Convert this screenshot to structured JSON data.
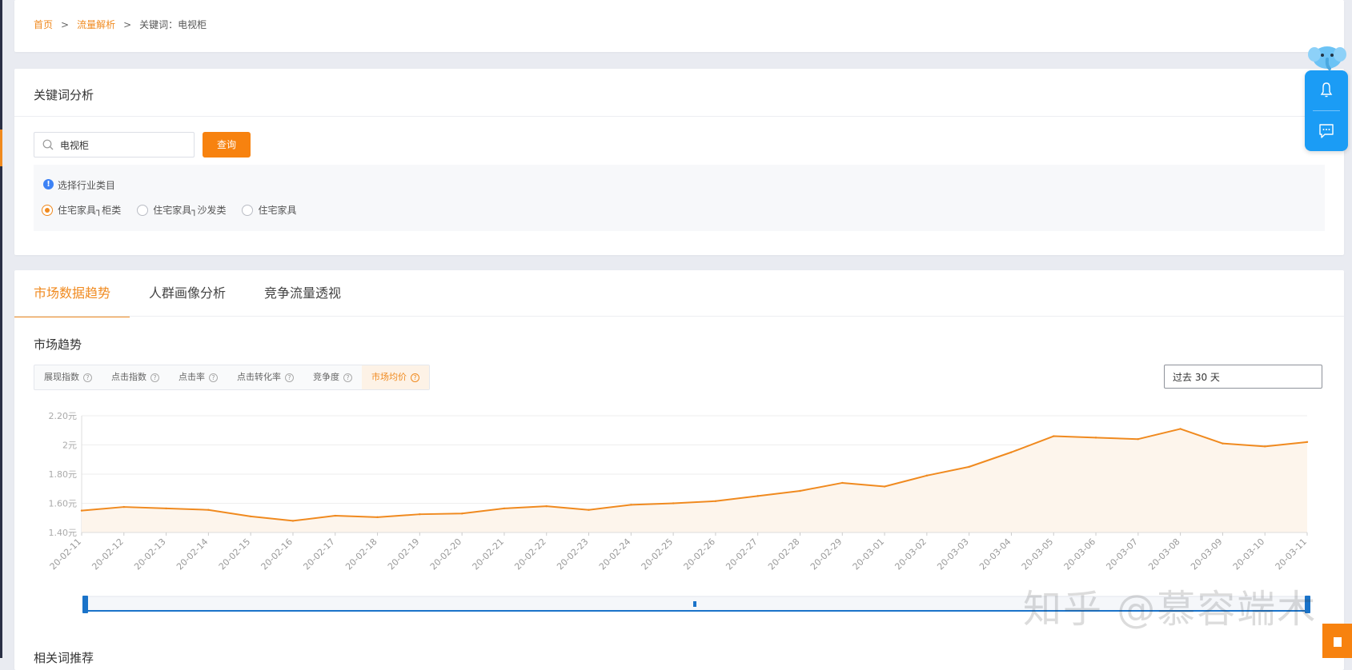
{
  "breadcrumb": {
    "home": "首页",
    "sep1": ">",
    "section": "流量解析",
    "sep2": ">",
    "current": "关键词：电视柜"
  },
  "keyword_panel": {
    "title": "关键词分析",
    "search_value": "电视柜",
    "query_button": "查询",
    "industry_label": "选择行业类目",
    "industry_options": [
      {
        "label": "住宅家具┐柜类",
        "checked": true
      },
      {
        "label": "住宅家具┐沙发类",
        "checked": false
      },
      {
        "label": "住宅家具",
        "checked": false
      }
    ]
  },
  "tabs": [
    "市场数据趋势",
    "人群画像分析",
    "竞争流量透视"
  ],
  "market_trend": {
    "title": "市场趋势",
    "metrics": [
      "展现指数",
      "点击指数",
      "点击率",
      "点击转化率",
      "竞争度",
      "市场均价"
    ],
    "active_metric": "市场均价",
    "date_range": "过去 30 天"
  },
  "related_title": "相关词推荐",
  "watermark": "知乎 @慕容端木",
  "colors": {
    "accent": "#f08a1f",
    "line": "#f08a1f",
    "area": "#fdf5ec",
    "float_panel": "#1b9cf5",
    "slider": "#1a73c9"
  },
  "chart_data": {
    "type": "area",
    "x": [
      "20-02-11",
      "20-02-12",
      "20-02-13",
      "20-02-14",
      "20-02-15",
      "20-02-16",
      "20-02-17",
      "20-02-18",
      "20-02-19",
      "20-02-20",
      "20-02-21",
      "20-02-22",
      "20-02-23",
      "20-02-24",
      "20-02-25",
      "20-02-26",
      "20-02-27",
      "20-02-28",
      "20-02-29",
      "20-03-01",
      "20-03-02",
      "20-03-03",
      "20-03-04",
      "20-03-05",
      "20-03-06",
      "20-03-07",
      "20-03-08",
      "20-03-09",
      "20-03-10",
      "20-03-11"
    ],
    "series": [
      {
        "values": [
          1.55,
          1.575,
          1.565,
          1.555,
          1.51,
          1.48,
          1.515,
          1.505,
          1.525,
          1.53,
          1.565,
          1.58,
          1.555,
          1.59,
          1.6,
          1.615,
          1.65,
          1.685,
          1.74,
          1.715,
          1.79,
          1.85,
          1.95,
          2.06,
          2.05,
          2.04,
          2.11,
          2.01,
          1.99,
          2.02
        ]
      }
    ],
    "y_ticks": [
      "1.40元",
      "1.60元",
      "1.80元",
      "2元",
      "2.20元"
    ],
    "y_tick_values": [
      1.4,
      1.6,
      1.8,
      2.0,
      2.2
    ],
    "ylim": [
      1.4,
      2.2
    ],
    "grid": true,
    "legend": "none"
  }
}
